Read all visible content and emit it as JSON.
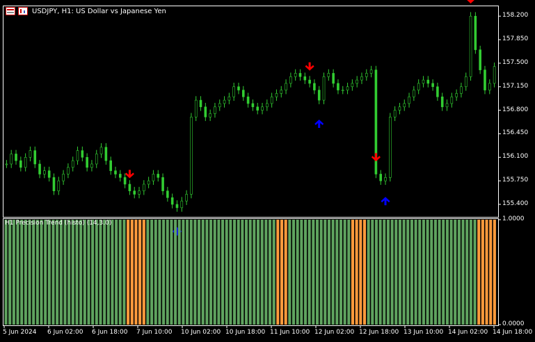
{
  "window": {
    "symbol_title": "USDJPY, H1:  US Dollar vs Japanese Yen",
    "indicator_title": "H1 Precision Trend (histo) (14,3.0)"
  },
  "colors": {
    "background": "#000000",
    "frame": "#ffffff",
    "candle": "#32cd32",
    "histo_up": "#5fa35f",
    "histo_down": "#ff9a3c",
    "arrow_sell": "#ff0000",
    "arrow_buy": "#0000ff"
  },
  "icons": [
    "window-icon",
    "chart-properties-icon"
  ],
  "price_axis": {
    "min": 155.224,
    "max": 158.337,
    "ticks": [
      "158.200",
      "157.850",
      "157.500",
      "157.150",
      "156.800",
      "156.450",
      "156.100",
      "155.750",
      "155.400"
    ]
  },
  "indicator_axis": {
    "min": 0.0,
    "max": 1.0,
    "ticks": [
      "1.0000",
      "0.0000"
    ]
  },
  "time_axis": {
    "labels": [
      "5 Jun 2024",
      "6 Jun 02:00",
      "6 Jun 18:00",
      "7 Jun 10:00",
      "10 Jun 02:00",
      "10 Jun 18:00",
      "11 Jun 10:00",
      "12 Jun 02:00",
      "12 Jun 18:00",
      "13 Jun 10:00",
      "14 Jun 02:00",
      "14 Jun 18:00"
    ]
  },
  "chart_data": {
    "type": "candlestick",
    "price_series": [
      156.0,
      156.15,
      156.05,
      155.95,
      156.1,
      156.2,
      156.0,
      155.85,
      155.9,
      155.8,
      155.6,
      155.75,
      155.85,
      155.95,
      156.05,
      156.2,
      156.1,
      155.95,
      156.0,
      156.15,
      156.25,
      156.05,
      155.9,
      155.85,
      155.8,
      155.7,
      155.6,
      155.55,
      155.6,
      155.7,
      155.75,
      155.85,
      155.8,
      155.6,
      155.5,
      155.4,
      155.35,
      155.45,
      155.55,
      156.7,
      156.95,
      156.85,
      156.7,
      156.75,
      156.85,
      156.9,
      156.95,
      157.0,
      157.15,
      157.1,
      157.0,
      156.9,
      156.85,
      156.8,
      156.85,
      156.9,
      157.0,
      157.05,
      157.1,
      157.2,
      157.3,
      157.35,
      157.3,
      157.25,
      157.2,
      157.1,
      156.95,
      157.3,
      157.35,
      157.2,
      157.1,
      157.1,
      157.15,
      157.2,
      157.25,
      157.3,
      157.35,
      157.4,
      155.85,
      155.75,
      155.8,
      156.7,
      156.8,
      156.85,
      156.9,
      157.0,
      157.1,
      157.2,
      157.25,
      157.2,
      157.15,
      157.0,
      156.85,
      156.9,
      157.0,
      157.05,
      157.15,
      157.3,
      158.2,
      157.7,
      157.4,
      157.1,
      157.2,
      157.45
    ],
    "buy_arrows": [
      {
        "x_index": 36
      },
      {
        "x_index": 66
      },
      {
        "x_index": 80
      }
    ],
    "sell_arrows": [
      {
        "x_index": 26
      },
      {
        "x_index": 64
      },
      {
        "x_index": 78
      },
      {
        "x_index": 98
      }
    ],
    "histogram": {
      "segments": [
        {
          "state": "up",
          "bars": 31
        },
        {
          "state": "down",
          "bars": 5
        },
        {
          "state": "up",
          "bars": 33
        },
        {
          "state": "down",
          "bars": 3
        },
        {
          "state": "up",
          "bars": 16
        },
        {
          "state": "down",
          "bars": 4
        },
        {
          "state": "up",
          "bars": 28
        },
        {
          "state": "down",
          "bars": 5
        }
      ]
    }
  }
}
